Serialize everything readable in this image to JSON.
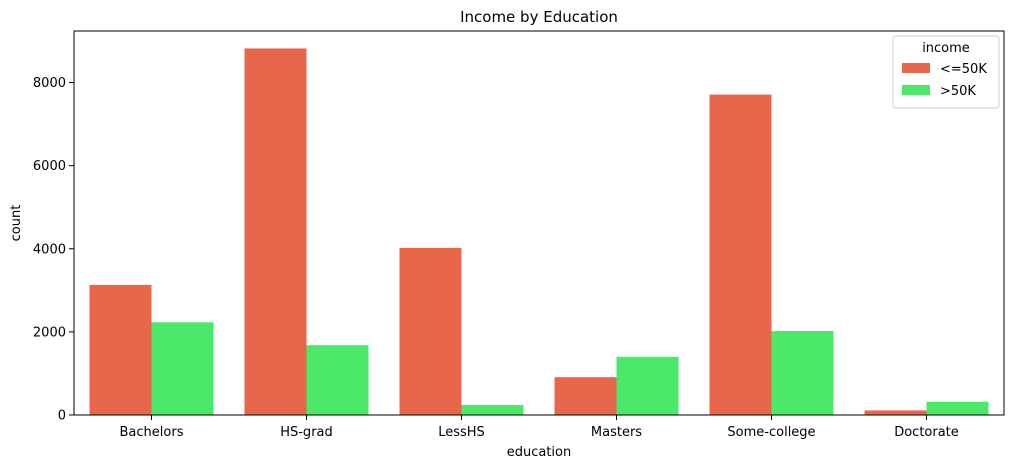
{
  "chart_data": {
    "type": "bar",
    "title": "Income by Education",
    "xlabel": "education",
    "ylabel": "count",
    "categories": [
      "Bachelors",
      "HS-grad",
      "LessHS",
      "Masters",
      "Some-college",
      "Doctorate"
    ],
    "series": [
      {
        "name": "<=50K",
        "color": "#e8674b",
        "values": [
          3130,
          8820,
          4020,
          910,
          7710,
          110
        ]
      },
      {
        "name": ">50K",
        "color": "#4ce86a",
        "values": [
          2230,
          1680,
          240,
          1400,
          2020,
          320
        ]
      }
    ],
    "ylim": [
      0,
      9240
    ],
    "yticks": [
      0,
      2000,
      4000,
      6000,
      8000
    ],
    "grid": false,
    "legend": {
      "title": "income",
      "placement": "top-right"
    }
  }
}
